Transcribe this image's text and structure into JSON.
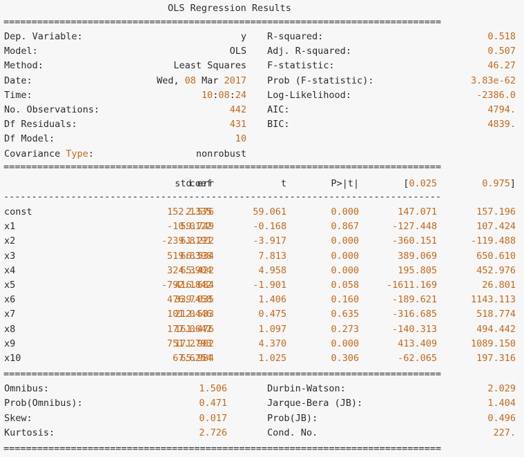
{
  "title": "OLS Regression Results",
  "rules": {
    "double": "==============================================================================",
    "single": "------------------------------------------------------------------------------"
  },
  "top_left": [
    {
      "label": "Dep. Variable:",
      "value": "y"
    },
    {
      "label": "Model:",
      "value": "OLS"
    },
    {
      "label": "Method:",
      "value": "Least Squares"
    },
    {
      "label": "Date:",
      "value": "Wed, 08 Mar 2017"
    },
    {
      "label": "Time:",
      "value": "10:08:24"
    },
    {
      "label": "No. Observations:",
      "value": "442"
    },
    {
      "label": "Df Residuals:",
      "value": "431"
    },
    {
      "label": "Df Model:",
      "value": "10"
    },
    {
      "label": "Covariance Type:",
      "value": "nonrobust"
    }
  ],
  "top_right": [
    {
      "label": "R-squared:",
      "value": "0.518"
    },
    {
      "label": "Adj. R-squared:",
      "value": "0.507"
    },
    {
      "label": "F-statistic:",
      "value": "46.27"
    },
    {
      "label": "Prob (F-statistic):",
      "value": "3.83e-62"
    },
    {
      "label": "Log-Likelihood:",
      "value": "-2386.0"
    },
    {
      "label": "AIC:",
      "value": "4794."
    },
    {
      "label": "BIC:",
      "value": "4839."
    }
  ],
  "coef_header": [
    "coef",
    "std err",
    "t",
    "P>|t|",
    "[0.025",
    "0.975]"
  ],
  "coef_rows": [
    {
      "name": "const",
      "cells": [
        "152.1335",
        "2.576",
        "59.061",
        "0.000",
        "147.071",
        "157.196"
      ]
    },
    {
      "name": "x1",
      "cells": [
        "-10.0122",
        "59.749",
        "-0.168",
        "0.867",
        "-127.448",
        "107.424"
      ]
    },
    {
      "name": "x2",
      "cells": [
        "-239.8191",
        "61.222",
        "-3.917",
        "0.000",
        "-360.151",
        "-119.488"
      ]
    },
    {
      "name": "x3",
      "cells": [
        "519.8398",
        "66.534",
        "7.813",
        "0.000",
        "389.069",
        "650.610"
      ]
    },
    {
      "name": "x4",
      "cells": [
        "324.3904",
        "65.422",
        "4.958",
        "0.000",
        "195.805",
        "452.976"
      ]
    },
    {
      "name": "x5",
      "cells": [
        "-792.1842",
        "416.684",
        "-1.901",
        "0.058",
        "-1611.169",
        "26.801"
      ]
    },
    {
      "name": "x6",
      "cells": [
        "476.7458",
        "339.035",
        "1.406",
        "0.160",
        "-189.621",
        "1143.113"
      ]
    },
    {
      "name": "x7",
      "cells": [
        "101.0446",
        "212.533",
        "0.475",
        "0.635",
        "-316.685",
        "518.774"
      ]
    },
    {
      "name": "x8",
      "cells": [
        "177.0642",
        "161.476",
        "1.097",
        "0.273",
        "-140.313",
        "494.442"
      ]
    },
    {
      "name": "x9",
      "cells": [
        "751.2793",
        "171.902",
        "4.370",
        "0.000",
        "413.409",
        "1089.150"
      ]
    },
    {
      "name": "x10",
      "cells": [
        "67.6254",
        "65.984",
        "1.025",
        "0.306",
        "-62.065",
        "197.316"
      ]
    }
  ],
  "bottom_left": [
    {
      "label": "Omnibus:",
      "value": "1.506"
    },
    {
      "label": "Prob(Omnibus):",
      "value": "0.471"
    },
    {
      "label": "Skew:",
      "value": "0.017"
    },
    {
      "label": "Kurtosis:",
      "value": "2.726"
    }
  ],
  "bottom_right": [
    {
      "label": "Durbin-Watson:",
      "value": "2.029"
    },
    {
      "label": "Jarque-Bera (JB):",
      "value": "1.404"
    },
    {
      "label": "Prob(JB):",
      "value": "0.496"
    },
    {
      "label": "Cond. No.",
      "value": "227."
    }
  ],
  "colors": {
    "number": "#c5691b",
    "text": "#2b2b2b",
    "background": "#f7f7f7"
  }
}
